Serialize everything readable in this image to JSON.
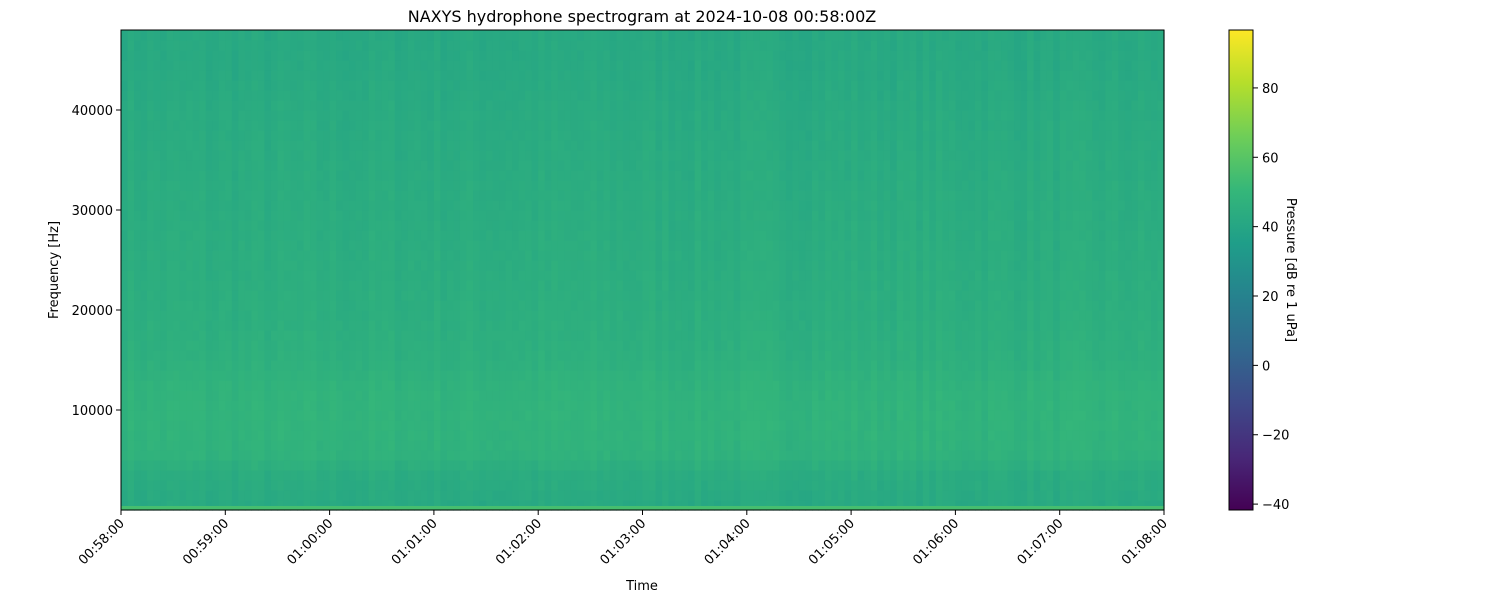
{
  "chart_data": {
    "type": "heatmap",
    "title": "NAXYS hydrophone spectrogram at 2024-10-08 00:58:00Z",
    "xlabel": "Time",
    "ylabel": "Frequency [Hz]",
    "colorbar_label": "Pressure [dB re 1 uPa]",
    "colormap": "viridis",
    "x_ticks": [
      "00:58:00",
      "00:59:00",
      "01:00:00",
      "01:01:00",
      "01:02:00",
      "01:03:00",
      "01:04:00",
      "01:05:00",
      "01:06:00",
      "01:07:00",
      "01:08:00"
    ],
    "xlim": [
      "00:58:00",
      "01:08:00"
    ],
    "y_ticks": [
      10000,
      20000,
      30000,
      40000
    ],
    "ylim": [
      0,
      48000
    ],
    "colorbar_ticks": [
      -40,
      -20,
      0,
      20,
      40,
      60,
      80
    ],
    "clim": [
      -41.7,
      96.7
    ],
    "frequency_profile": {
      "frequency_hz": [
        0,
        500,
        2000,
        4000,
        5000,
        8000,
        12000,
        15000,
        20000,
        30000,
        40000,
        45000,
        48000
      ],
      "level_db": [
        55,
        42,
        43,
        44,
        47,
        48,
        48,
        46,
        45,
        44,
        43,
        42,
        42
      ]
    },
    "grid": false
  },
  "colors": {
    "viridis_stops": [
      "#440154",
      "#482878",
      "#3e4989",
      "#31688e",
      "#26828e",
      "#1f9e89",
      "#35b779",
      "#6ece58",
      "#b5de2b",
      "#fde725"
    ]
  }
}
